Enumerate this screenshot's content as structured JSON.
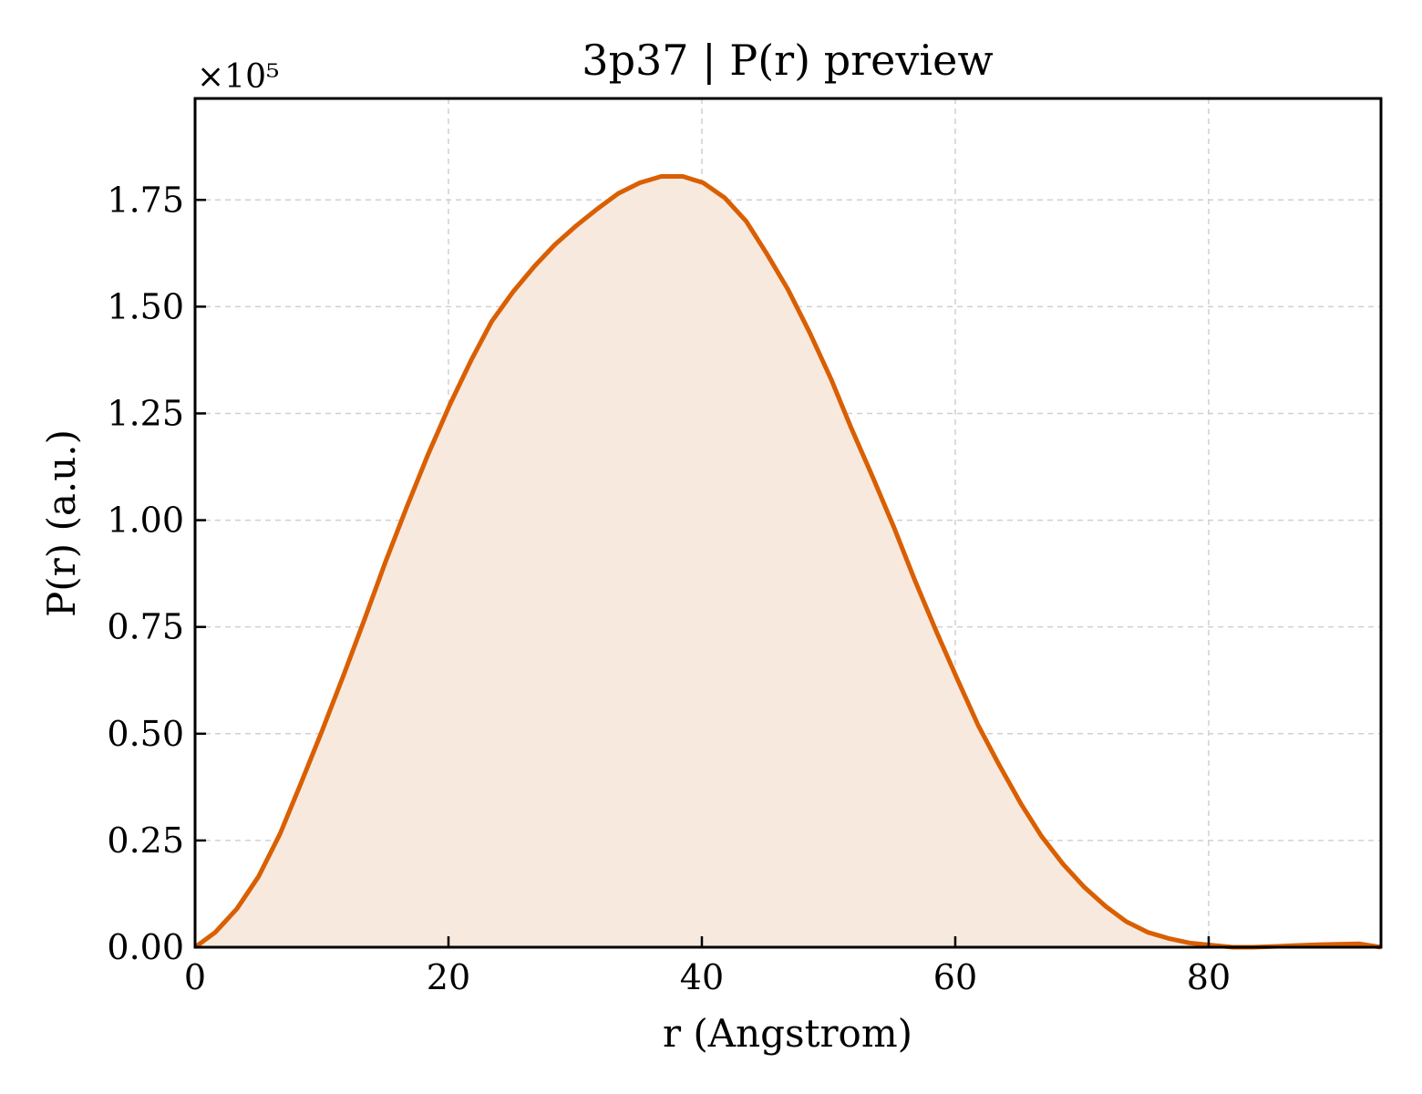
{
  "chart_data": {
    "type": "area",
    "title": "3p37 | P(r) preview",
    "xlabel": "r (Angstrom)",
    "ylabel": "P(r) (a.u.)",
    "y_scale_multiplier": "×10⁵",
    "xlim": [
      0,
      93.6
    ],
    "ylim": [
      0,
      1.9875
    ],
    "x_ticks": [
      0,
      20,
      40,
      60,
      80
    ],
    "x_tick_labels": [
      "0",
      "20",
      "40",
      "60",
      "80"
    ],
    "y_ticks": [
      0,
      0.25,
      0.5,
      0.75,
      1.0,
      1.25,
      1.5,
      1.75
    ],
    "y_tick_labels": [
      "0.00",
      "0.25",
      "0.50",
      "0.75",
      "1.00",
      "1.25",
      "1.50",
      "1.75"
    ],
    "grid": true,
    "color": "#d95f02",
    "fill_color": "#f8e9df",
    "series": [
      {
        "x": [
          0,
          1.6,
          3.3,
          5.0,
          6.7,
          8.3,
          10.0,
          11.7,
          13.4,
          15.0,
          16.7,
          18.4,
          20.1,
          21.8,
          23.4,
          25.1,
          26.8,
          28.4,
          30.1,
          31.8,
          33.4,
          35.1,
          36.8,
          38.5,
          40.1,
          41.8,
          43.5,
          45.1,
          46.8,
          48.5,
          50.2,
          51.8,
          53.5,
          55.2,
          56.8,
          58.5,
          60.2,
          61.8,
          63.5,
          65.2,
          66.8,
          68.5,
          70.2,
          71.9,
          73.5,
          75.2,
          76.9,
          78.5,
          80.2,
          81.9,
          83.5,
          85.2,
          86.9,
          88.6,
          90.2,
          91.9,
          93.6
        ],
        "y": [
          0.0,
          0.035,
          0.09,
          0.165,
          0.265,
          0.38,
          0.505,
          0.635,
          0.77,
          0.9,
          1.03,
          1.155,
          1.27,
          1.375,
          1.465,
          1.535,
          1.595,
          1.645,
          1.69,
          1.73,
          1.765,
          1.79,
          1.805,
          1.805,
          1.79,
          1.755,
          1.7,
          1.625,
          1.54,
          1.44,
          1.33,
          1.215,
          1.1,
          0.98,
          0.86,
          0.74,
          0.625,
          0.52,
          0.425,
          0.335,
          0.26,
          0.195,
          0.14,
          0.095,
          0.06,
          0.035,
          0.02,
          0.01,
          0.005,
          0.0,
          0.0,
          0.002,
          0.004,
          0.006,
          0.007,
          0.008,
          0.0
        ]
      }
    ]
  }
}
